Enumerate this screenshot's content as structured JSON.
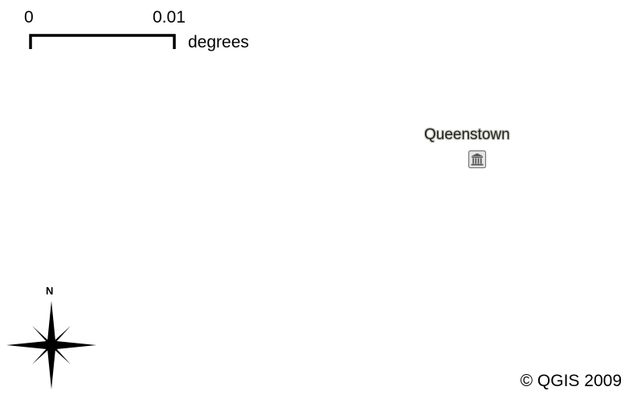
{
  "scale_bar": {
    "start_label": "0",
    "end_label": "0.01",
    "unit": "degrees"
  },
  "places": [
    {
      "label": "Queenstown",
      "icon": "town-hall-icon"
    }
  ],
  "north_arrow": {
    "label": "N",
    "icon": "compass-star-icon"
  },
  "copyright": "© QGIS 2009",
  "colors": {
    "background": "#ffffff",
    "label_halo": "#cfcfc6",
    "ink": "#000000"
  }
}
